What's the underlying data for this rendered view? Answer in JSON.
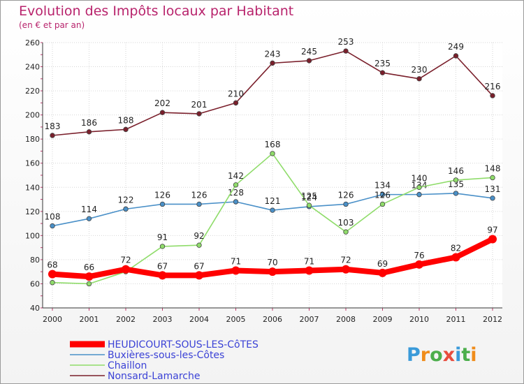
{
  "header": {
    "title": "Evolution des Impôts locaux par Habitant",
    "subtitle": "(en € et par an)"
  },
  "logo": {
    "text": "Proxiti",
    "colors": [
      "#3a9ad9",
      "#f08c1a",
      "#4cae4c",
      "#e84c3d",
      "#3a9ad9",
      "#4cae4c",
      "#f08c1a"
    ]
  },
  "chart_data": {
    "type": "line",
    "categories": [
      "2000",
      "2001",
      "2002",
      "2003",
      "2004",
      "2005",
      "2006",
      "2007",
      "2008",
      "2009",
      "2010",
      "2011",
      "2012"
    ],
    "ylim": [
      40,
      260
    ],
    "yticks": [
      40,
      60,
      80,
      100,
      120,
      140,
      160,
      180,
      200,
      220,
      240,
      260
    ],
    "grid": true,
    "legend": "bottom-left",
    "series": [
      {
        "name": "Nonsard-Lamarche",
        "color": "#7a1f2b",
        "values": [
          183,
          186,
          188,
          202,
          201,
          210,
          243,
          245,
          253,
          235,
          230,
          249,
          216
        ]
      },
      {
        "name": "Buxières-sous-les-Côtes",
        "color": "#4a90c8",
        "values": [
          108,
          114,
          122,
          126,
          126,
          128,
          121,
          124,
          126,
          134,
          134,
          135,
          131
        ]
      },
      {
        "name": "Chaillon",
        "color": "#8fdc6a",
        "values": [
          61,
          60,
          70,
          91,
          92,
          142,
          168,
          125,
          103,
          126,
          140,
          146,
          148
        ]
      },
      {
        "name": "HEUDICOURT-SOUS-LES-CôTES",
        "color": "#ff0000",
        "values": [
          68,
          66,
          72,
          67,
          67,
          71,
          70,
          71,
          72,
          69,
          76,
          82,
          97
        ]
      }
    ],
    "labels_printed": {
      "Nonsard-Lamarche": [
        "183",
        "186",
        "188",
        "202",
        "201",
        "210",
        "243",
        "245",
        "253",
        "235",
        "230",
        "249",
        "216"
      ],
      "Buxières-sous-les-Côtes": [
        "108",
        "114",
        "122",
        "126",
        "126",
        "128",
        "121",
        "124",
        "126",
        "134",
        "134",
        "135",
        "131"
      ],
      "Chaillon": [
        "",
        "",
        "",
        "91",
        "92",
        "142",
        "168",
        "125",
        "103",
        "126",
        "140",
        "146",
        "148"
      ],
      "HEUDICOURT-SOUS-LES-CôTES": [
        "68",
        "66",
        "72",
        "67",
        "67",
        "71",
        "70",
        "71",
        "72",
        "69",
        "76",
        "82",
        "97"
      ]
    }
  }
}
